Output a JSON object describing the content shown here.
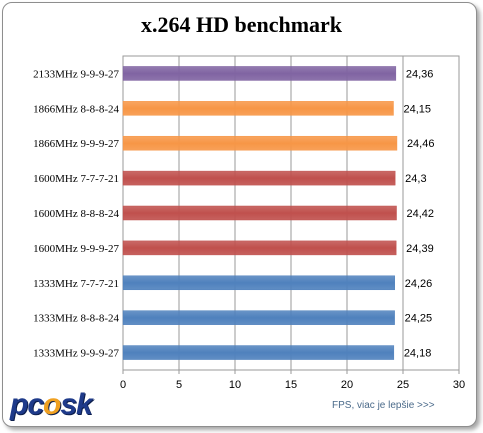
{
  "chart_data": {
    "type": "bar",
    "orientation": "horizontal",
    "title": "x.264 HD benchmark",
    "xlabel": "FPS, viac je lepšie >>>",
    "xlim": [
      0,
      30
    ],
    "xticks": [
      "0",
      "5",
      "10",
      "15",
      "20",
      "25",
      "30"
    ],
    "grid": true,
    "categories": [
      "2133MHz 9-9-9-27",
      "1866MHz 8-8-8-24",
      "1866MHz 9-9-9-27",
      "1600MHz 7-7-7-21",
      "1600MHz 8-8-8-24",
      "1600MHz 9-9-9-27",
      "1333MHz 7-7-7-21",
      "1333MHz 8-8-8-24",
      "1333MHz 9-9-9-27"
    ],
    "values": [
      24.36,
      24.15,
      24.46,
      24.3,
      24.42,
      24.39,
      24.26,
      24.25,
      24.18
    ],
    "value_labels": [
      "24,36",
      "24,15",
      "24,46",
      "24,3",
      "24,42",
      "24,39",
      "24,26",
      "24,25",
      "24,18"
    ],
    "bar_colors": [
      "#8064a2",
      "#f79646",
      "#f79646",
      "#c0504d",
      "#c0504d",
      "#c0504d",
      "#4f81bd",
      "#4f81bd",
      "#4f81bd"
    ]
  },
  "logo": {
    "text_a": "pc",
    "text_b": "o",
    "text_c": "sk"
  }
}
